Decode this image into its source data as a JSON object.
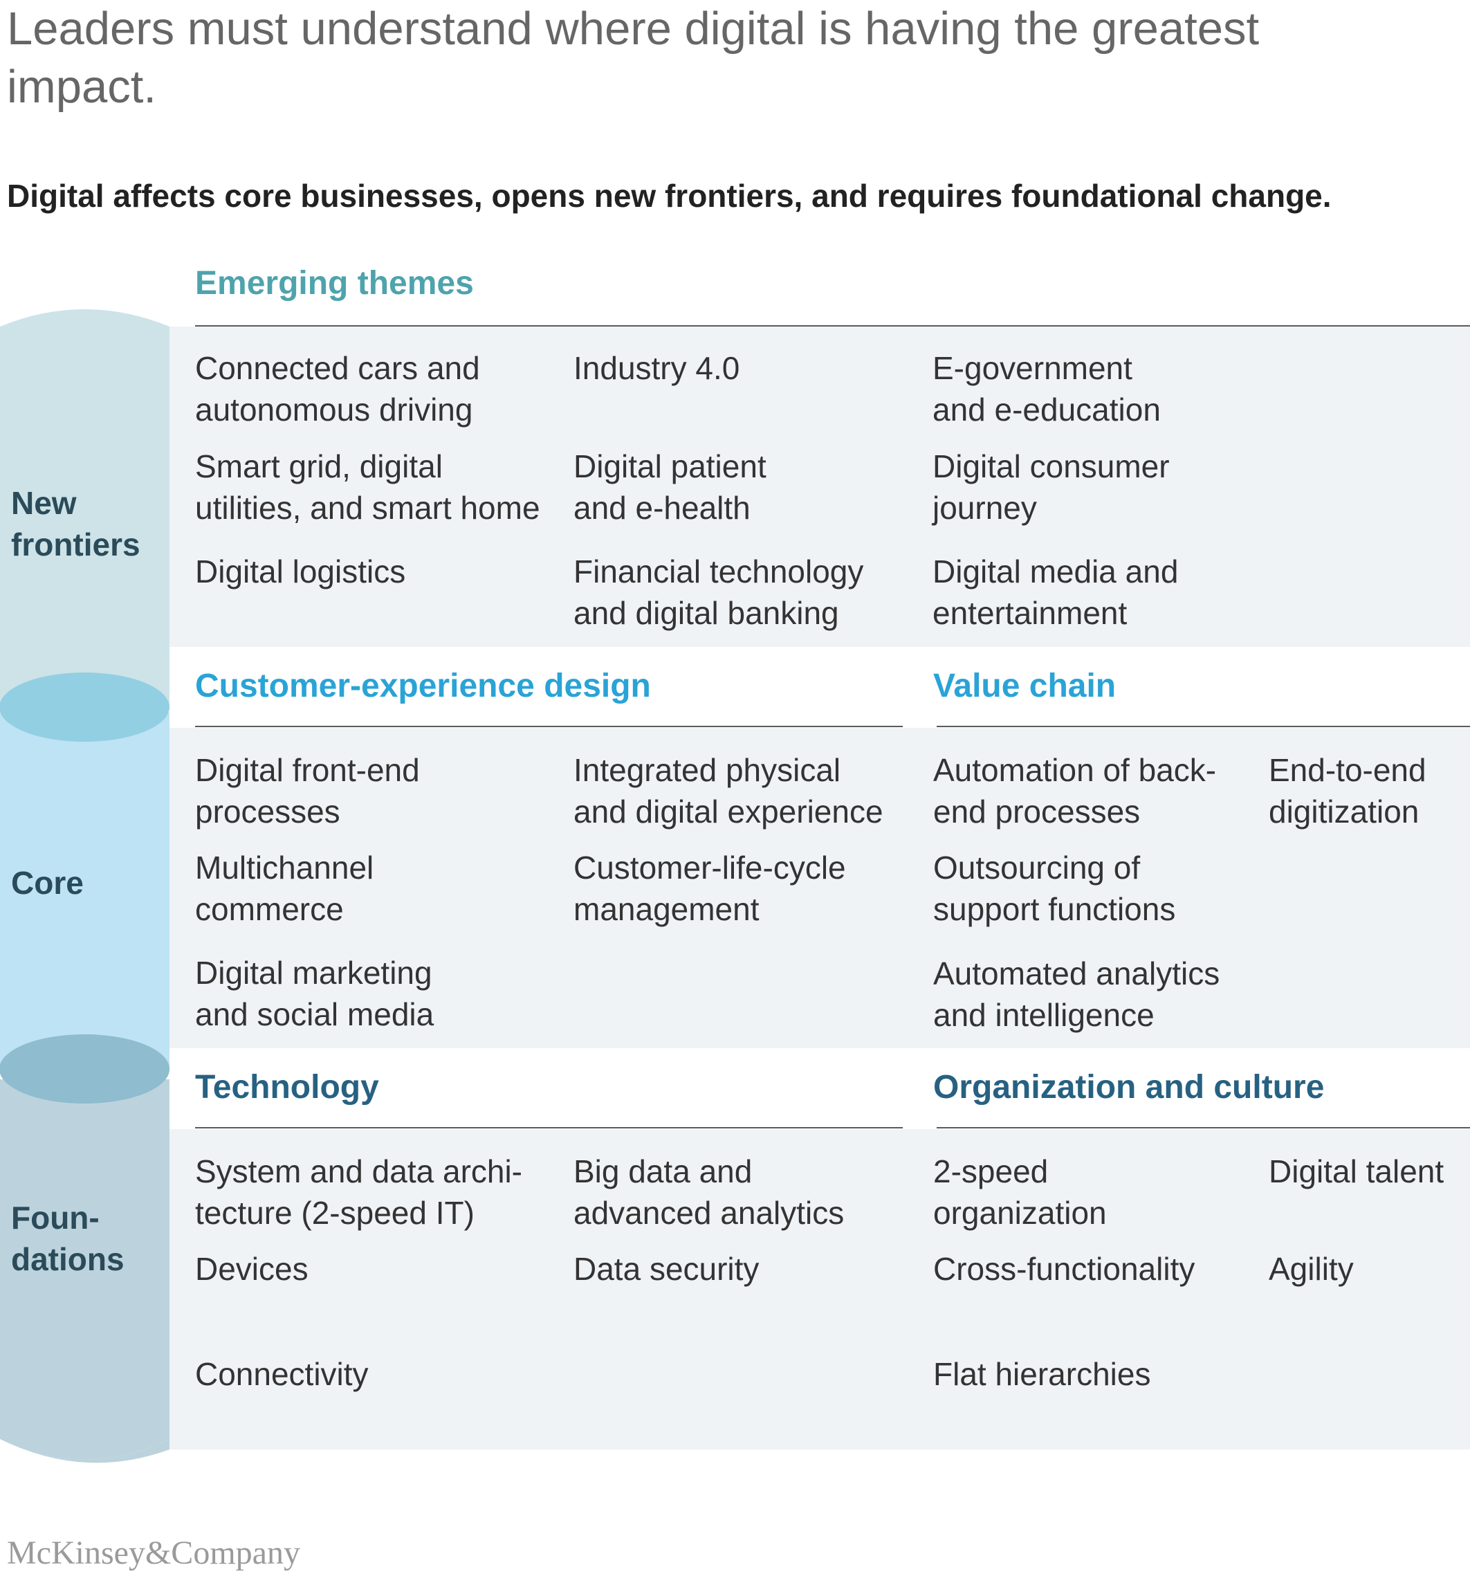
{
  "title": "Leaders must understand where digital is having the greatest impact.",
  "subtitle": "Digital affects core businesses, opens new frontiers, and requires foundational change.",
  "colors": {
    "new_frontiers_band": "#cde3e8",
    "core_band": "#bde3f4",
    "foundations_band": "#bcd3dd",
    "emerging_head": "#4ea3ac",
    "core_head": "#2aa3d6",
    "foundations_head": "#276182",
    "panel": "#eff3f6"
  },
  "layers": {
    "new_frontiers": [
      "New",
      "frontiers"
    ],
    "core": [
      "Core"
    ],
    "foundations": [
      "Foun-",
      "dations"
    ]
  },
  "sections": {
    "emerging": {
      "header": "Emerging themes",
      "items": [
        [
          "Connected cars and",
          "autonomous driving"
        ],
        [
          "Industry 4.0"
        ],
        [
          "E-government",
          "and e-education"
        ],
        [
          "Smart grid, digital",
          "utilities, and smart home"
        ],
        [
          "Digital patient",
          "and e-health"
        ],
        [
          "Digital consumer",
          "journey"
        ],
        [
          "Digital logistics"
        ],
        [
          "Financial technology",
          "and digital banking"
        ],
        [
          "Digital media and",
          "entertainment"
        ]
      ]
    },
    "cx_design": {
      "header": "Customer-experience design",
      "items": [
        [
          "Digital front-end",
          "processes"
        ],
        [
          "Integrated physical",
          "and digital experience"
        ],
        [
          "Multichannel",
          "commerce"
        ],
        [
          "Customer-life-cycle",
          "management"
        ],
        [
          "Digital marketing",
          "and social media"
        ]
      ]
    },
    "value_chain": {
      "header": "Value chain",
      "items": [
        [
          "Automation of back-",
          "end processes"
        ],
        [
          "End-to-end",
          "digitization"
        ],
        [
          "Outsourcing of",
          "support functions"
        ],
        [
          "Automated analytics",
          "and intelligence"
        ]
      ]
    },
    "technology": {
      "header": "Technology",
      "items": [
        [
          "System and data archi-",
          "tecture (2-speed IT)"
        ],
        [
          "Big data and",
          "advanced analytics"
        ],
        [
          "Devices"
        ],
        [
          "Data security"
        ],
        [
          "Connectivity"
        ]
      ]
    },
    "org_culture": {
      "header": "Organization and culture",
      "items": [
        [
          "2-speed",
          "organization"
        ],
        [
          "Digital talent"
        ],
        [
          "Cross-functionality"
        ],
        [
          "Agility"
        ],
        [
          "Flat hierarchies"
        ]
      ]
    }
  },
  "logo": "McKinsey&Company"
}
